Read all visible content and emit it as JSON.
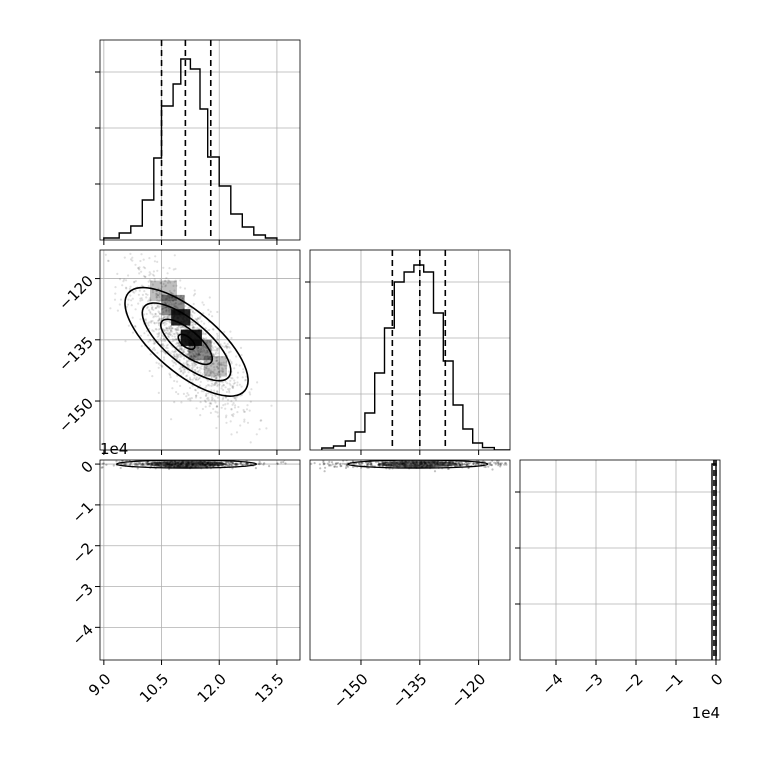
{
  "chart_data": {
    "type": "corner",
    "grid": true,
    "quantile_lines": "dashed",
    "panels": [
      {
        "name": "hist-param1",
        "type": "histogram",
        "row": 0,
        "col": 0,
        "xlim": [
          8.9,
          14.1
        ],
        "ylim": [
          0,
          1.0
        ],
        "bin_edges": [
          9.0,
          9.4,
          9.7,
          10.0,
          10.3,
          10.5,
          10.8,
          11.0,
          11.25,
          11.5,
          11.7,
          12.0,
          12.3,
          12.6,
          12.9,
          13.2,
          13.5
        ],
        "counts": [
          0.01,
          0.035,
          0.07,
          0.2,
          0.41,
          0.67,
          0.78,
          0.905,
          0.855,
          0.655,
          0.415,
          0.27,
          0.13,
          0.065,
          0.025,
          0.01
        ],
        "quantiles": [
          10.5,
          11.12,
          11.78
        ]
      },
      {
        "name": "contour-param1-param2",
        "type": "2d-density",
        "row": 1,
        "col": 0,
        "xlim": [
          8.9,
          14.1
        ],
        "ylim": [
          -162,
          -113
        ],
        "ytick_labels": [
          "-120",
          "-135",
          "-150"
        ],
        "yticks": [
          -120,
          -135,
          -150
        ],
        "peak": [
          11.1,
          -135.5
        ]
      },
      {
        "name": "hist-param2",
        "type": "histogram",
        "row": 1,
        "col": 1,
        "xlim": [
          -163,
          -112
        ],
        "ylim": [
          0,
          1.0
        ],
        "bin_edges": [
          -160,
          -157,
          -154,
          -151.5,
          -149,
          -146.5,
          -144,
          -141.5,
          -139,
          -136.5,
          -134,
          -131.5,
          -129,
          -126.5,
          -124,
          -121.5,
          -119,
          -116,
          -112
        ],
        "counts": [
          0.01,
          0.02,
          0.045,
          0.09,
          0.185,
          0.385,
          0.61,
          0.84,
          0.89,
          0.925,
          0.89,
          0.685,
          0.445,
          0.225,
          0.105,
          0.035,
          0.012,
          0.0
        ],
        "quantiles": [
          -142,
          -135,
          -128.5
        ]
      },
      {
        "name": "contour-param1-param3",
        "type": "2d-density",
        "row": 2,
        "col": 0,
        "xlim": [
          8.9,
          14.1
        ],
        "ylim": [
          -4.8,
          0.1
        ],
        "ytick_labels": [
          "0",
          "-1",
          "-2",
          "-3",
          "-4"
        ],
        "yticks": [
          0,
          -1,
          -2,
          -3,
          -4
        ],
        "xtick_labels": [
          "9.0",
          "10.5",
          "12.0",
          "13.5"
        ],
        "xticks": [
          9.0,
          10.5,
          12.0,
          13.5
        ],
        "y_offset_label": "1e4"
      },
      {
        "name": "contour-param2-param3",
        "type": "2d-density",
        "row": 2,
        "col": 1,
        "xlim": [
          -163,
          -112
        ],
        "ylim": [
          -4.8,
          0.1
        ],
        "xtick_labels": [
          "-150",
          "-135",
          "-120"
        ],
        "xticks": [
          -150,
          -135,
          -120
        ]
      },
      {
        "name": "hist-param3",
        "type": "histogram",
        "row": 2,
        "col": 2,
        "xlim": [
          -4.9,
          0.1
        ],
        "ylim": [
          0,
          1.0
        ],
        "xtick_labels": [
          "-4",
          "-3",
          "-2",
          "-1",
          "0"
        ],
        "xticks": [
          -4,
          -3,
          -2,
          -1,
          0
        ],
        "x_offset_label": "1e4",
        "bin_edges": [
          -0.1,
          0.0
        ],
        "counts": [
          0.98
        ],
        "quantiles": [
          -0.05,
          0.0
        ]
      }
    ]
  }
}
